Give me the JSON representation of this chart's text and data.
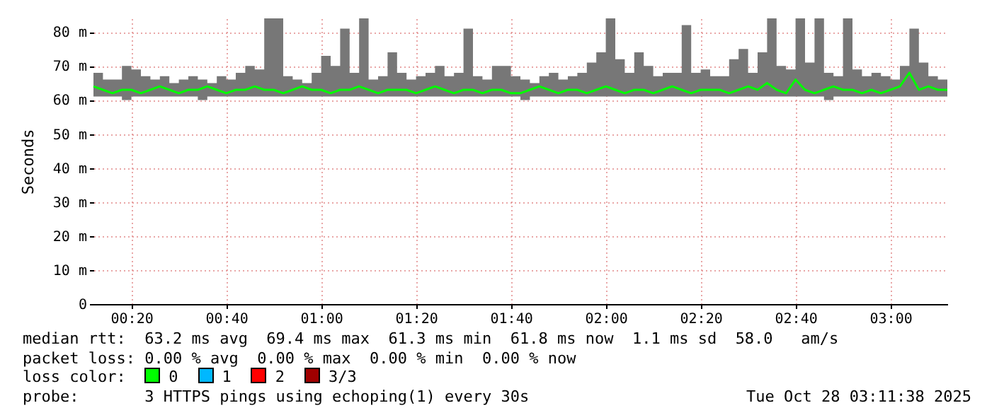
{
  "chart_data": {
    "type": "line",
    "ylabel": "Seconds",
    "legend_title": "loss color:",
    "legend": "bottom",
    "grid": true,
    "x": [
      "2025-10-28T00:12",
      "2025-10-28T00:14",
      "2025-10-28T00:16",
      "2025-10-28T00:18",
      "2025-10-28T00:20",
      "2025-10-28T00:22",
      "2025-10-28T00:24",
      "2025-10-28T00:26",
      "2025-10-28T00:28",
      "2025-10-28T00:30",
      "2025-10-28T00:32",
      "2025-10-28T00:34",
      "2025-10-28T00:36",
      "2025-10-28T00:38",
      "2025-10-28T00:40",
      "2025-10-28T00:42",
      "2025-10-28T00:44",
      "2025-10-28T00:46",
      "2025-10-28T00:48",
      "2025-10-28T00:50",
      "2025-10-28T00:52",
      "2025-10-28T00:54",
      "2025-10-28T00:56",
      "2025-10-28T00:58",
      "2025-10-28T01:00",
      "2025-10-28T01:02",
      "2025-10-28T01:04",
      "2025-10-28T01:06",
      "2025-10-28T01:08",
      "2025-10-28T01:10",
      "2025-10-28T01:12",
      "2025-10-28T01:14",
      "2025-10-28T01:16",
      "2025-10-28T01:18",
      "2025-10-28T01:20",
      "2025-10-28T01:22",
      "2025-10-28T01:24",
      "2025-10-28T01:26",
      "2025-10-28T01:28",
      "2025-10-28T01:30",
      "2025-10-28T01:32",
      "2025-10-28T01:34",
      "2025-10-28T01:36",
      "2025-10-28T01:38",
      "2025-10-28T01:40",
      "2025-10-28T01:42",
      "2025-10-28T01:44",
      "2025-10-28T01:46",
      "2025-10-28T01:48",
      "2025-10-28T01:50",
      "2025-10-28T01:52",
      "2025-10-28T01:54",
      "2025-10-28T01:56",
      "2025-10-28T01:58",
      "2025-10-28T02:00",
      "2025-10-28T02:02",
      "2025-10-28T02:04",
      "2025-10-28T02:06",
      "2025-10-28T02:08",
      "2025-10-28T02:10",
      "2025-10-28T02:12",
      "2025-10-28T02:14",
      "2025-10-28T02:16",
      "2025-10-28T02:18",
      "2025-10-28T02:20",
      "2025-10-28T02:22",
      "2025-10-28T02:24",
      "2025-10-28T02:26",
      "2025-10-28T02:28",
      "2025-10-28T02:30",
      "2025-10-28T02:32",
      "2025-10-28T02:34",
      "2025-10-28T02:36",
      "2025-10-28T02:38",
      "2025-10-28T02:40",
      "2025-10-28T02:42",
      "2025-10-28T02:44",
      "2025-10-28T02:46",
      "2025-10-28T02:48",
      "2025-10-28T02:50",
      "2025-10-28T02:52",
      "2025-10-28T02:54",
      "2025-10-28T02:56",
      "2025-10-28T02:58",
      "2025-10-28T03:00",
      "2025-10-28T03:02",
      "2025-10-28T03:04",
      "2025-10-28T03:06",
      "2025-10-28T03:08",
      "2025-10-28T03:10",
      "2025-10-28T03:12"
    ],
    "series": [
      {
        "name": "0",
        "color": "#00ff00",
        "values": [
          64,
          63,
          62,
          63,
          63,
          62,
          63,
          64,
          63,
          62,
          63,
          63,
          64,
          63,
          62,
          63,
          63,
          64,
          63,
          63,
          62,
          63,
          64,
          63,
          63,
          62,
          63,
          63,
          64,
          63,
          62,
          63,
          63,
          63,
          62,
          63,
          64,
          63,
          62,
          63,
          63,
          62,
          63,
          63,
          62,
          62,
          63,
          64,
          63,
          62,
          63,
          63,
          62,
          63,
          64,
          63,
          62,
          63,
          63,
          62,
          63,
          64,
          63,
          62,
          63,
          63,
          63,
          62,
          63,
          64,
          63,
          65,
          63,
          62,
          66,
          63,
          62,
          63,
          64,
          63,
          63,
          62,
          63,
          62,
          63,
          64,
          68,
          63,
          64,
          63,
          63
        ],
        "lower": [
          61,
          61,
          61,
          60,
          61,
          61,
          61,
          61,
          61,
          61,
          61,
          60,
          61,
          61,
          61,
          61,
          61,
          61,
          61,
          61,
          61,
          61,
          61,
          61,
          61,
          61,
          61,
          61,
          61,
          61,
          61,
          61,
          61,
          61,
          61,
          61,
          61,
          61,
          61,
          61,
          61,
          61,
          61,
          61,
          61,
          60,
          61,
          61,
          61,
          61,
          61,
          61,
          61,
          61,
          61,
          61,
          61,
          61,
          61,
          61,
          61,
          61,
          61,
          61,
          61,
          61,
          61,
          61,
          61,
          61,
          61,
          61,
          61,
          61,
          61,
          61,
          61,
          60,
          61,
          61,
          61,
          61,
          61,
          61,
          61,
          61,
          61,
          61,
          61,
          61,
          61
        ],
        "upper": [
          68,
          66,
          66,
          70,
          69,
          67,
          66,
          67,
          65,
          66,
          67,
          66,
          65,
          67,
          66,
          68,
          70,
          69,
          84,
          84,
          67,
          66,
          65,
          68,
          73,
          70,
          81,
          68,
          84,
          66,
          67,
          74,
          68,
          66,
          67,
          68,
          70,
          67,
          68,
          81,
          67,
          66,
          70,
          70,
          67,
          66,
          65,
          67,
          68,
          66,
          67,
          68,
          71,
          74,
          84,
          72,
          68,
          74,
          70,
          67,
          68,
          68,
          82,
          68,
          69,
          67,
          67,
          72,
          75,
          68,
          74,
          84,
          70,
          69,
          84,
          71,
          84,
          68,
          67,
          84,
          69,
          67,
          68,
          67,
          66,
          70,
          81,
          71,
          67,
          66,
          65
        ]
      },
      {
        "name": "1",
        "color": "#00b8ff",
        "values": [
          null,
          null,
          null,
          null,
          null,
          null,
          null,
          null,
          null,
          null,
          null,
          null,
          null,
          null,
          null,
          null,
          null,
          null,
          null,
          null,
          null,
          null,
          null,
          null,
          null,
          null,
          null,
          null,
          null,
          null,
          null,
          null,
          null,
          null,
          null,
          null,
          null,
          null,
          null,
          null,
          null,
          null,
          null,
          null,
          null,
          null,
          null,
          null,
          null,
          null,
          null,
          null,
          null,
          null,
          null,
          null,
          null,
          null,
          null,
          null,
          null,
          null,
          null,
          null,
          null,
          null,
          null,
          null,
          null,
          null,
          null,
          null,
          null,
          null,
          null,
          null,
          null,
          null,
          null,
          null,
          null,
          null,
          null,
          null,
          null,
          null,
          null,
          null,
          null,
          null,
          null
        ]
      },
      {
        "name": "2",
        "color": "#ff0000",
        "values": [
          null,
          null,
          null,
          null,
          null,
          null,
          null,
          null,
          null,
          null,
          null,
          null,
          null,
          null,
          null,
          null,
          null,
          null,
          null,
          null,
          null,
          null,
          null,
          null,
          null,
          null,
          null,
          null,
          null,
          null,
          null,
          null,
          null,
          null,
          null,
          null,
          null,
          null,
          null,
          null,
          null,
          null,
          null,
          null,
          null,
          null,
          null,
          null,
          null,
          null,
          null,
          null,
          null,
          null,
          null,
          null,
          null,
          null,
          null,
          null,
          null,
          null,
          null,
          null,
          null,
          null,
          null,
          null,
          null,
          null,
          null,
          null,
          null,
          null,
          null,
          null,
          null,
          null,
          null,
          null,
          null,
          null,
          null,
          null,
          null,
          null,
          null,
          null,
          null,
          null,
          null
        ]
      },
      {
        "name": "3/3",
        "color": "#a00000",
        "values": [
          null,
          null,
          null,
          null,
          null,
          null,
          null,
          null,
          null,
          null,
          null,
          null,
          null,
          null,
          null,
          null,
          null,
          null,
          null,
          null,
          null,
          null,
          null,
          null,
          null,
          null,
          null,
          null,
          null,
          null,
          null,
          null,
          null,
          null,
          null,
          null,
          null,
          null,
          null,
          null,
          null,
          null,
          null,
          null,
          null,
          null,
          null,
          null,
          null,
          null,
          null,
          null,
          null,
          null,
          null,
          null,
          null,
          null,
          null,
          null,
          null,
          null,
          null,
          null,
          null,
          null,
          null,
          null,
          null,
          null,
          null,
          null,
          null,
          null,
          null,
          null,
          null,
          null,
          null,
          null,
          null,
          null,
          null,
          null,
          null,
          null,
          null,
          null,
          null,
          null,
          null
        ]
      }
    ],
    "xlim": [
      "2025-10-28T00:12",
      "2025-10-28T03:12"
    ],
    "xticks": [
      {
        "value": "2025-10-28T00:20",
        "label": "00:20"
      },
      {
        "value": "2025-10-28T00:40",
        "label": "00:40"
      },
      {
        "value": "2025-10-28T01:00",
        "label": "01:00"
      },
      {
        "value": "2025-10-28T01:20",
        "label": "01:20"
      },
      {
        "value": "2025-10-28T01:40",
        "label": "01:40"
      },
      {
        "value": "2025-10-28T02:00",
        "label": "02:00"
      },
      {
        "value": "2025-10-28T02:20",
        "label": "02:20"
      },
      {
        "value": "2025-10-28T02:40",
        "label": "02:40"
      },
      {
        "value": "2025-10-28T03:00",
        "label": "03:00"
      }
    ],
    "ylim": [
      0,
      84
    ],
    "yticks": [
      0,
      {
        "value": 10,
        "label": "10 m"
      },
      {
        "value": 20,
        "label": "20 m"
      },
      {
        "value": 30,
        "label": "30 m"
      },
      {
        "value": 40,
        "label": "40 m"
      },
      {
        "value": 50,
        "label": "50 m"
      },
      {
        "value": 60,
        "label": "60 m"
      },
      {
        "value": 70,
        "label": "70 m"
      },
      {
        "value": 80,
        "label": "80 m"
      }
    ],
    "annotations": [
      "median rtt:  63.2 ms avg  69.4 ms max  61.3 ms min  61.8 ms now  1.1 ms sd  58.0   am/s",
      "packet loss: 0.00 % avg  0.00 % max  0.00 % min  0.00 % now",
      "probe:       3 HTTPS pings using echoping(1) every 30s",
      "Tue Oct 28 03:11:38 2025"
    ]
  }
}
